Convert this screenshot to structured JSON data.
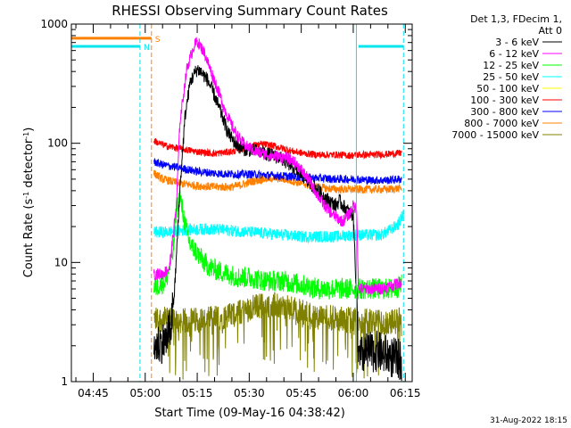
{
  "chart_data": {
    "type": "line",
    "title": "RHESSI Observing Summary Count Rates",
    "xlabel": "Start Time (09-May-16 04:38:42)",
    "ylabel_parts": [
      "Count Rate (s",
      "-1",
      " detector",
      "-1",
      ")"
    ],
    "ylabel": "Count Rate (s-1 detector-1)",
    "yscale": "log",
    "ylim": [
      1,
      1000
    ],
    "xlim": [
      "04:38:42",
      "06:17:00"
    ],
    "x_tick_labels": [
      "04:45",
      "05:00",
      "05:15",
      "05:30",
      "05:45",
      "06:00",
      "06:15"
    ],
    "x_tick_minutes": [
      45,
      60,
      75,
      90,
      105,
      120,
      135
    ],
    "y_tick_labels": [
      "1",
      "10",
      "100",
      "1000"
    ],
    "y_tick_values": [
      1,
      10,
      100,
      1000
    ],
    "legend_header": [
      "Det 1,3, FDecim 1,",
      "Att 0"
    ],
    "timestamp": "31-Aug-2022 18:15",
    "flags": [
      {
        "label": "S",
        "color": "#ff8000",
        "start_min": 38.7,
        "end_min": 61.8,
        "value": 760
      },
      {
        "label": "N",
        "color": "#00e5ee",
        "start_min": 38.7,
        "end_min": 58.5,
        "value": 650
      },
      {
        "label": "",
        "color": "#00e5ee",
        "start_min": 121.5,
        "end_min": 134.5,
        "value": 650
      }
    ],
    "vlines": [
      {
        "x_min": 38.7,
        "color": "#00e5ee",
        "style": "solid"
      },
      {
        "x_min": 58.5,
        "color": "#00e5ee",
        "style": "dashed"
      },
      {
        "x_min": 61.8,
        "color": "#ff8000",
        "style": "dashed"
      },
      {
        "x_min": 120.9,
        "color": "#00e5ee",
        "style": "solid"
      },
      {
        "x_min": 134.5,
        "color": "#00e5ee",
        "style": "dashed"
      }
    ],
    "series": [
      {
        "name": "3 - 6 keV",
        "color": "#000000",
        "x": [
          62.5,
          66,
          67.5,
          68.5,
          70,
          71.5,
          73,
          75,
          76,
          78,
          80,
          82,
          84,
          86,
          88,
          90,
          93,
          96,
          99,
          102,
          105,
          108,
          111,
          113,
          115,
          116,
          117,
          118,
          119,
          120,
          121,
          121.5,
          123,
          127,
          131,
          134
        ],
        "y": [
          2,
          2.2,
          3,
          6,
          40,
          170,
          330,
          420,
          400,
          340,
          250,
          175,
          120,
          100,
          90,
          88,
          85,
          80,
          75,
          65,
          55,
          45,
          37,
          33,
          30,
          33,
          30,
          28,
          26,
          25,
          5,
          1.5,
          1.7,
          1.8,
          1.6,
          1.5
        ]
      },
      {
        "name": "6 - 12 keV",
        "color": "#ff00ff",
        "x": [
          62.5,
          65,
          67,
          69,
          70,
          72,
          74,
          75,
          77,
          79,
          81,
          83,
          85,
          87,
          89,
          92,
          95,
          98,
          101,
          103,
          105,
          107,
          109,
          111,
          113,
          115,
          117,
          119,
          120,
          121,
          121.5,
          124,
          128,
          132,
          134
        ],
        "y": [
          8,
          8,
          9,
          30,
          150,
          420,
          650,
          720,
          580,
          400,
          280,
          190,
          140,
          110,
          95,
          85,
          80,
          78,
          75,
          70,
          60,
          50,
          40,
          32,
          27,
          24,
          22,
          26,
          30,
          28,
          6,
          6,
          6,
          6.5,
          7
        ]
      },
      {
        "name": "12 - 25 keV",
        "color": "#00ff00",
        "x": [
          62.5,
          64,
          66,
          68,
          69,
          70,
          71,
          72,
          73,
          75,
          77,
          79,
          81,
          84,
          87,
          90,
          95,
          100,
          105,
          110,
          115,
          120,
          121,
          124,
          128,
          132,
          134
        ],
        "y": [
          6,
          6.5,
          7,
          12,
          28,
          36,
          25,
          18,
          14,
          12,
          10,
          9,
          8.5,
          8,
          7.5,
          7.5,
          7,
          7,
          6.5,
          6,
          6,
          6,
          6,
          6,
          6,
          6,
          6.5
        ]
      },
      {
        "name": "25 - 50 keV",
        "color": "#00ffff",
        "x": [
          62.5,
          66,
          70,
          75,
          80,
          85,
          90,
          95,
          100,
          105,
          110,
          115,
          120,
          121,
          124,
          128,
          131,
          133,
          134.5
        ],
        "y": [
          18,
          18,
          18.5,
          19,
          19,
          18.5,
          18,
          17.5,
          17,
          16.5,
          16.5,
          16.5,
          17,
          17,
          17,
          17,
          19,
          21,
          26
        ]
      },
      {
        "name": "50 - 100 keV",
        "color": "#ffff00",
        "x": [],
        "y": []
      },
      {
        "name": "100 - 300 keV",
        "color": "#ff0000",
        "x": [
          62.5,
          64,
          66,
          70,
          75,
          80,
          85,
          88,
          91,
          94,
          97,
          100,
          103,
          106,
          110,
          115,
          120,
          121,
          125,
          130,
          134
        ],
        "y": [
          105,
          100,
          95,
          90,
          85,
          82,
          85,
          90,
          96,
          98,
          95,
          90,
          85,
          82,
          80,
          80,
          79,
          80,
          80,
          81,
          83
        ]
      },
      {
        "name": "300 - 800 keV",
        "color": "#0000ff",
        "x": [
          62.5,
          65,
          70,
          75,
          80,
          85,
          90,
          95,
          100,
          105,
          110,
          115,
          120,
          125,
          130,
          134
        ],
        "y": [
          70,
          66,
          62,
          58,
          56,
          55,
          55,
          54,
          53,
          52,
          51,
          50,
          50,
          49,
          49,
          50
        ]
      },
      {
        "name": "800 - 7000 keV",
        "color": "#ff8000",
        "x": [
          62.5,
          65,
          70,
          75,
          80,
          85,
          88,
          91,
          94,
          97,
          100,
          104,
          108,
          112,
          116,
          120,
          125,
          130,
          134
        ],
        "y": [
          56,
          50,
          46,
          44,
          43,
          43,
          45,
          48,
          50,
          51,
          50,
          47,
          44,
          42,
          41,
          41,
          41,
          41,
          42
        ]
      },
      {
        "name": "7000 - 15000 keV",
        "color": "#808000",
        "x": [
          62.5,
          66,
          70,
          75,
          80,
          85,
          88,
          91,
          94,
          97,
          100,
          103,
          106,
          110,
          114,
          118,
          120,
          121,
          124,
          128,
          132,
          134
        ],
        "y": [
          3.4,
          3.3,
          3.2,
          3.3,
          3.4,
          3.6,
          3.9,
          4.2,
          4.4,
          4.4,
          4.2,
          4,
          3.8,
          3.5,
          3.4,
          3.3,
          3.3,
          3.2,
          3.2,
          3.1,
          3.2,
          3.3
        ]
      }
    ]
  }
}
